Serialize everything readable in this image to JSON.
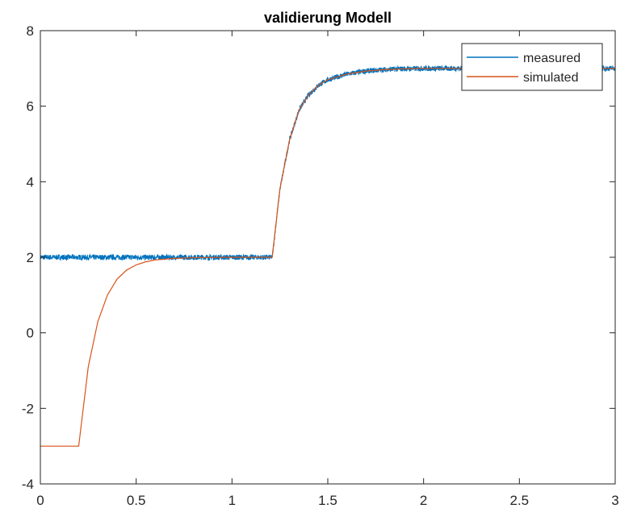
{
  "chart_data": {
    "type": "line",
    "title": "validierung Modell",
    "xlabel": "",
    "ylabel": "",
    "xlim": [
      0,
      3
    ],
    "ylim": [
      -4,
      8
    ],
    "xticks": [
      0,
      0.5,
      1,
      1.5,
      2,
      2.5,
      3
    ],
    "xtick_labels": [
      "0",
      "0.5",
      "1",
      "1.5",
      "2",
      "2.5",
      "3"
    ],
    "yticks": [
      -4,
      -2,
      0,
      2,
      4,
      6,
      8
    ],
    "ytick_labels": [
      "-4",
      "-2",
      "0",
      "2",
      "4",
      "6",
      "8"
    ],
    "grid": false,
    "legend_position": "top-right",
    "series": [
      {
        "name": "measured",
        "color": "#0072BD",
        "x": [
          0,
          0.1,
          0.2,
          0.3,
          0.4,
          0.5,
          0.6,
          0.7,
          0.8,
          0.9,
          1.0,
          1.1,
          1.2,
          1.21,
          1.25,
          1.3,
          1.35,
          1.4,
          1.45,
          1.5,
          1.6,
          1.7,
          1.8,
          1.9,
          2.0,
          2.2,
          2.4,
          2.6,
          2.8,
          3.0
        ],
        "y": [
          2.0,
          2.0,
          2.0,
          2.0,
          2.0,
          2.0,
          2.0,
          2.0,
          2.0,
          2.0,
          2.0,
          2.0,
          2.0,
          2.0,
          3.8,
          5.1,
          5.9,
          6.3,
          6.55,
          6.7,
          6.85,
          6.93,
          6.97,
          6.99,
          7.0,
          7.0,
          7.0,
          7.0,
          7.0,
          7.0
        ]
      },
      {
        "name": "simulated",
        "color": "#D95319",
        "x": [
          0,
          0.2,
          0.25,
          0.3,
          0.35,
          0.4,
          0.45,
          0.5,
          0.55,
          0.6,
          0.7,
          0.8,
          1.0,
          1.2,
          1.21,
          1.25,
          1.3,
          1.35,
          1.4,
          1.45,
          1.5,
          1.6,
          1.7,
          1.8,
          1.9,
          2.0,
          2.2,
          2.4,
          2.6,
          2.8,
          3.0
        ],
        "y": [
          -3.0,
          -3.0,
          -0.9,
          0.3,
          1.0,
          1.42,
          1.66,
          1.8,
          1.88,
          1.93,
          1.97,
          1.99,
          2.0,
          2.0,
          2.0,
          3.8,
          5.1,
          5.9,
          6.3,
          6.55,
          6.7,
          6.85,
          6.93,
          6.97,
          6.99,
          7.0,
          7.0,
          7.0,
          7.0,
          7.0,
          7.0
        ]
      }
    ]
  }
}
